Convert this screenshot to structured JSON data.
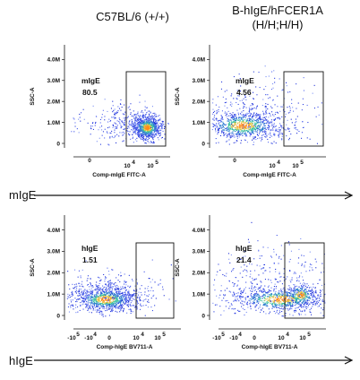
{
  "columns": [
    {
      "title": "C57BL/6 (+/+)"
    },
    {
      "title_line1": "B-hIgE/hFCER1A",
      "title_line2": "(H/H;H/H)"
    }
  ],
  "rows": [
    {
      "label": "mIgE"
    },
    {
      "label": "hIgE"
    }
  ],
  "chart_data": [
    {
      "type": "scatter",
      "panel": "top-left",
      "ylabel": "SSC-A",
      "xlabel": "Comp-mIgE FITC-A",
      "yticks": [
        "0",
        "1.0M",
        "2.0M",
        "3.0M",
        "4.0M"
      ],
      "yticks_values": [
        0,
        1000000,
        2000000,
        3000000,
        4000000
      ],
      "xticks": [
        "0",
        "10",
        "4",
        "10",
        "5"
      ],
      "gate": {
        "name": "mIgE",
        "percent": "80.5"
      },
      "colors": [
        "#1f2fd6",
        "#2f7fd0",
        "#37c0a0",
        "#e0c040",
        "#ff8c1a"
      ]
    },
    {
      "type": "scatter",
      "panel": "top-right",
      "ylabel": "SSC-A",
      "xlabel": "Comp-mIgE FITC-A",
      "yticks": [
        "0",
        "1.0M",
        "2.0M",
        "3.0M",
        "4.0M"
      ],
      "yticks_values": [
        0,
        1000000,
        2000000,
        3000000,
        4000000
      ],
      "xticks": [
        "0",
        "10",
        "4",
        "10",
        "5"
      ],
      "gate": {
        "name": "mIgE",
        "percent": "4.56"
      }
    },
    {
      "type": "scatter",
      "panel": "bottom-left",
      "ylabel": "SSC-A",
      "xlabel": "Comp-hIgE BV711-A",
      "yticks": [
        "0",
        "1.0M",
        "2.0M",
        "3.0M",
        "4.0M"
      ],
      "yticks_values": [
        0,
        1000000,
        2000000,
        3000000,
        4000000
      ],
      "xticks": [
        "-10",
        "5",
        "-10",
        "4",
        "0",
        "10",
        "4",
        "10",
        "5"
      ],
      "gate": {
        "name": "hIgE",
        "percent": "1.51"
      }
    },
    {
      "type": "scatter",
      "panel": "bottom-right",
      "ylabel": "SSC-A",
      "xlabel": "Comp-hIgE BV711-A",
      "yticks": [
        "0",
        "1.0M",
        "2.0M",
        "3.0M",
        "4.0M"
      ],
      "yticks_values": [
        0,
        1000000,
        2000000,
        3000000,
        4000000
      ],
      "xticks": [
        "-10",
        "5",
        "-10",
        "4",
        "0",
        "10",
        "4",
        "10",
        "5"
      ],
      "gate": {
        "name": "hIgE",
        "percent": "21.4"
      }
    }
  ]
}
